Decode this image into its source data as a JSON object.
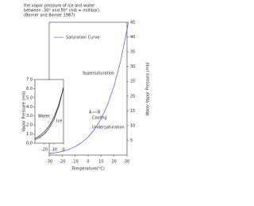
{
  "title_lines": [
    "the vapor pressure of ice and water",
    "between -30° and 50° (mb = millibar).",
    "(Berner and Berner 1987)"
  ],
  "chart_data": [
    {
      "type": "line",
      "x_label": "Temperature(°C)",
      "y_label": "Vapor Pressure (mb)",
      "y2_label": "Water Vapor Pressure (mb)",
      "xlim": [
        -30,
        30
      ],
      "xticks": [
        -30,
        -20,
        -10,
        0,
        10,
        20,
        30
      ],
      "ylim": [
        0,
        45
      ],
      "yticks": [
        5,
        10,
        15,
        20,
        25,
        30,
        35,
        40,
        45
      ],
      "x": [
        -30,
        -25,
        -20,
        -15,
        -10,
        -5,
        0,
        5,
        10,
        15,
        20,
        25,
        30,
        31
      ],
      "series": [
        {
          "name": "Saturation Curve",
          "color": "#4f4fe0",
          "values": [
            0.51,
            0.81,
            1.25,
            1.91,
            2.86,
            4.22,
            6.11,
            8.72,
            12.28,
            17.05,
            23.39,
            31.69,
            42.47,
            44.9
          ]
        }
      ],
      "annotations": [
        "Supersaturation",
        "Undersaturation",
        "Cooling",
        "A",
        "B"
      ]
    },
    {
      "type": "line",
      "xlim": [
        -30,
        0
      ],
      "xticks": [
        -20,
        -10,
        0
      ],
      "ylim": [
        0,
        7
      ],
      "yticks": [
        {
          "value": 0,
          "label": "0.0"
        },
        {
          "value": 1,
          "label": "1.0"
        },
        {
          "value": 2,
          "label": "2.0"
        },
        {
          "value": 3,
          "label": "3.0"
        },
        {
          "value": 4,
          "label": "4.0"
        },
        {
          "value": 5,
          "label": "5.0"
        },
        {
          "value": 6,
          "label": "6.0"
        },
        {
          "value": 7,
          "label": "7.0"
        }
      ],
      "x": [
        -30,
        -25,
        -20,
        -15,
        -10,
        -5,
        0
      ],
      "series": [
        {
          "name": "Water",
          "color": "#000000",
          "values": [
            0.51,
            0.81,
            1.25,
            1.91,
            2.86,
            4.22,
            6.11
          ]
        },
        {
          "name": "Ice",
          "color": "#000000",
          "values": [
            0.38,
            0.63,
            1.03,
            1.65,
            2.6,
            4.02,
            6.11
          ]
        }
      ]
    }
  ]
}
